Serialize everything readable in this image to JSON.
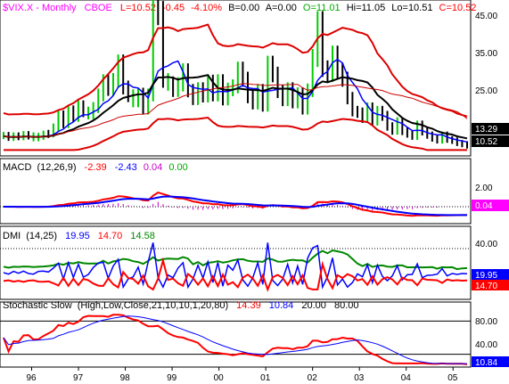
{
  "header": {
    "symbol": "$VIX.X - Monthly",
    "source": "CBOE",
    "L": "L=10.52",
    "chg": "-0.45",
    "pct": "-4.10%",
    "B": "B=0.00",
    "A": "A=0.00",
    "O": "O=11.01",
    "Hi": "Hi=11.05",
    "Lo": "Lo=10.51",
    "C": "C=10.52"
  },
  "colors": {
    "price_up": "#00cc00",
    "price_down": "#000000",
    "ma_short": "#0000ff",
    "ma_long": "#000000",
    "band": "#dd0000",
    "grid": "#000000",
    "label_bg": "#000000",
    "signal_bg": "#ff00ff"
  },
  "chart_data": [
    {
      "type": "ohlc",
      "name": "price",
      "x_ticks": [
        "96",
        "97",
        "98",
        "99",
        "00",
        "01",
        "02",
        "03",
        "04",
        "05"
      ],
      "y_ticks": [
        45.0,
        35.0,
        25.0
      ],
      "ylim": [
        8,
        48
      ],
      "price_labels": [
        "13.29",
        "10.52"
      ],
      "start_year": 1995.6,
      "end_year": 2005.5,
      "close": [
        13.1,
        12.6,
        13.0,
        12.8,
        13.3,
        13.0,
        12.5,
        12.9,
        13.4,
        13.6,
        15.1,
        18.2,
        16.1,
        19.4,
        17.8,
        20.6,
        19.1,
        18.5,
        20.2,
        23.4,
        26.8,
        24.9,
        27.1,
        31.5,
        25.3,
        23.2,
        21.8,
        23.6,
        19.8,
        23.4,
        45.8,
        44.2,
        27.1,
        26.3,
        24.6,
        26.1,
        29.4,
        24.5,
        22.4,
        24.9,
        23.1,
        26.7,
        23.4,
        26.8,
        22.3,
        24.8,
        25.6,
        29.8,
        27.4,
        22.9,
        21.2,
        24.5,
        20.6,
        31.2,
        28.6,
        24.3,
        22.1,
        24.9,
        21.5,
        23.7,
        19.8,
        24.6,
        32.8,
        41.8,
        30.1,
        28.7,
        33.6,
        29.5,
        27.4,
        22.6,
        19.3,
        18.9,
        17.5,
        20.1,
        16.8,
        19.3,
        18.1,
        15.4,
        14.3,
        16.6,
        14.2,
        13.5,
        12.9,
        15.8,
        14.1,
        13.2,
        12.4,
        11.9,
        13.2,
        12.1,
        11.8,
        11.2,
        10.9,
        10.52
      ],
      "bar_colors": [
        "up",
        "down",
        "up",
        "down",
        "up",
        "down",
        "up",
        "up",
        "up",
        "down",
        "up",
        "up",
        "down",
        "up",
        "down",
        "up",
        "down",
        "up",
        "up",
        "up",
        "up",
        "down",
        "up",
        "up",
        "down",
        "down",
        "up",
        "up",
        "down",
        "up",
        "up",
        "down",
        "down",
        "up",
        "down",
        "up",
        "up",
        "down",
        "down",
        "up",
        "down",
        "up",
        "down",
        "up",
        "down",
        "up",
        "up",
        "up",
        "down",
        "down",
        "down",
        "up",
        "down",
        "up",
        "down",
        "down",
        "down",
        "up",
        "down",
        "up",
        "down",
        "up",
        "up",
        "up",
        "down",
        "down",
        "up",
        "down",
        "down",
        "down",
        "down",
        "down",
        "down",
        "up",
        "down",
        "up",
        "down",
        "down",
        "down",
        "up",
        "down",
        "down",
        "down",
        "up",
        "down",
        "down",
        "down",
        "down",
        "up",
        "down",
        "down",
        "down",
        "down",
        "down"
      ]
    }
  ],
  "macd": {
    "label": "MACD",
    "params": "(12,26,9)",
    "v1": "-2.39",
    "v2": "-2.43",
    "v3": "0.04",
    "v4": "0.00",
    "tick": "2.00",
    "value_box": "0.04"
  },
  "dmi": {
    "label": "DMI",
    "params": "(14,25)",
    "v1": "19.95",
    "v2": "14.70",
    "v3": "14.58",
    "tick": "40.00",
    "box1": "19.95",
    "box2": "14.70"
  },
  "stoch": {
    "label": "Stochastic Slow",
    "params": "(High,Low,Close,21,10,10,1,20,80)",
    "v1": "14.39",
    "v2": "10.84",
    "v3": "20.00",
    "v4": "80.00",
    "tick1": "80.00",
    "tick2": "40.00",
    "box": "10.84"
  }
}
